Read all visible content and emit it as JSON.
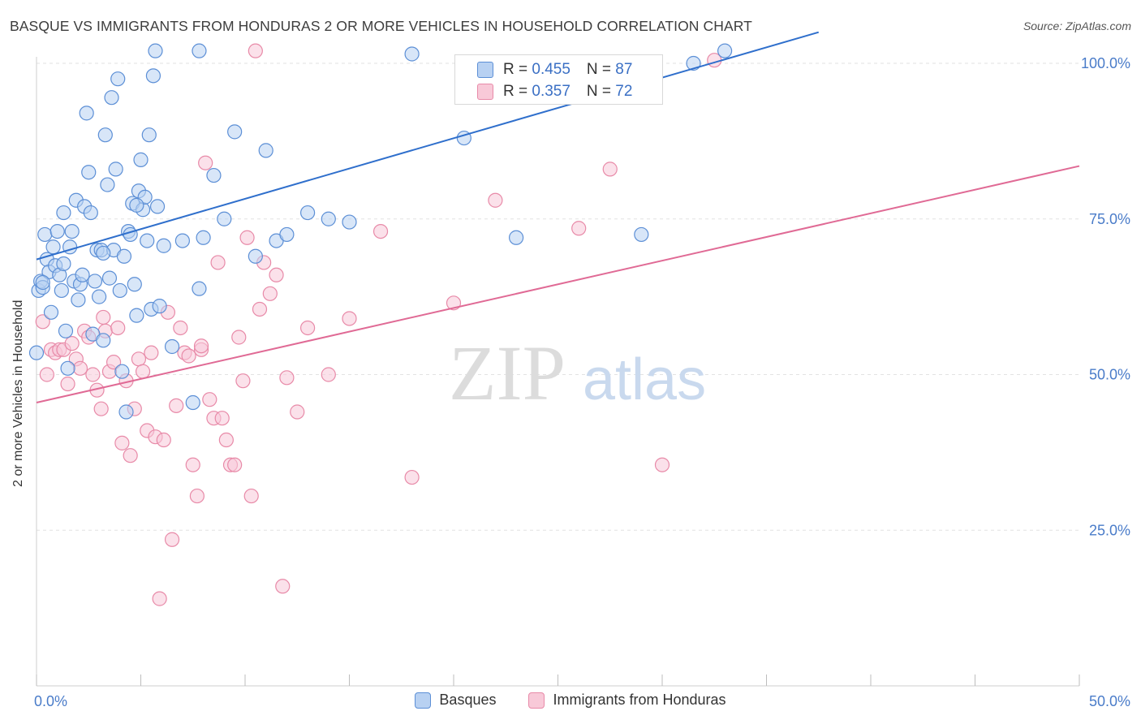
{
  "title": "BASQUE VS IMMIGRANTS FROM HONDURAS 2 OR MORE VEHICLES IN HOUSEHOLD CORRELATION CHART",
  "source": "Source: ZipAtlas.com",
  "watermark": {
    "zip": "ZIP",
    "atlas": "atlas"
  },
  "legend": {
    "rows": [
      {
        "r_label": "R = ",
        "r_value": "0.455",
        "n_label": "N = ",
        "n_value": "87"
      },
      {
        "r_label": "R = ",
        "r_value": "0.357",
        "n_label": "N = ",
        "n_value": "72"
      }
    ]
  },
  "colors": {
    "blue_fill": "#b8d1f2",
    "blue_stroke": "#5c8fd6",
    "blue_line": "#2f6fcc",
    "pink_fill": "#f8c9d8",
    "pink_stroke": "#e88aa8",
    "pink_line": "#e06a95",
    "axis_text": "#4a7cc9",
    "grid": "#e2e2e2"
  },
  "chart_data": {
    "type": "scatter",
    "title": "BASQUE VS IMMIGRANTS FROM HONDURAS 2 OR MORE VEHICLES IN HOUSEHOLD CORRELATION CHART",
    "xlabel": "",
    "ylabel": "2 or more Vehicles in Household",
    "xlim": [
      0,
      50
    ],
    "ylim": [
      0,
      105
    ],
    "x_tick_labels": [
      "0.0%",
      "50.0%"
    ],
    "y_ticks": [
      25,
      50,
      75,
      100
    ],
    "y_tick_labels": [
      "25.0%",
      "50.0%",
      "75.0%",
      "100.0%"
    ],
    "legend": [
      "Basques",
      "Immigrants from Honduras"
    ],
    "series": [
      {
        "name": "Basques",
        "trend": {
          "x": [
            0,
            37.5
          ],
          "y": [
            68.5,
            105
          ]
        },
        "points": [
          [
            0.1,
            63.5
          ],
          [
            0.2,
            65.0
          ],
          [
            0.3,
            64.0
          ],
          [
            0.4,
            72.5
          ],
          [
            0.5,
            68.5
          ],
          [
            0.6,
            66.5
          ],
          [
            0.7,
            60.0
          ],
          [
            0.8,
            70.5
          ],
          [
            0.9,
            67.5
          ],
          [
            1.0,
            73.0
          ],
          [
            1.1,
            66.0
          ],
          [
            1.2,
            63.5
          ],
          [
            1.3,
            76.0
          ],
          [
            1.4,
            57.0
          ],
          [
            1.5,
            51.0
          ],
          [
            1.6,
            70.5
          ],
          [
            1.7,
            73.0
          ],
          [
            1.8,
            65.0
          ],
          [
            1.9,
            78.0
          ],
          [
            2.0,
            62.0
          ],
          [
            2.1,
            64.5
          ],
          [
            2.2,
            66.0
          ],
          [
            2.3,
            77.0
          ],
          [
            2.4,
            92.0
          ],
          [
            2.5,
            82.5
          ],
          [
            2.6,
            76.0
          ],
          [
            2.7,
            56.5
          ],
          [
            2.8,
            65.0
          ],
          [
            2.9,
            70.0
          ],
          [
            3.0,
            62.5
          ],
          [
            3.1,
            70.0
          ],
          [
            3.2,
            55.5
          ],
          [
            3.3,
            88.5
          ],
          [
            3.4,
            80.5
          ],
          [
            3.5,
            65.5
          ],
          [
            3.6,
            94.5
          ],
          [
            3.7,
            70.0
          ],
          [
            3.8,
            83.0
          ],
          [
            3.9,
            97.5
          ],
          [
            4.0,
            63.5
          ],
          [
            4.1,
            50.5
          ],
          [
            4.2,
            69.0
          ],
          [
            4.3,
            44.0
          ],
          [
            4.4,
            73.0
          ],
          [
            4.5,
            72.5
          ],
          [
            4.6,
            77.5
          ],
          [
            4.7,
            64.5
          ],
          [
            4.8,
            59.5
          ],
          [
            4.9,
            79.5
          ],
          [
            5.0,
            84.5
          ],
          [
            5.1,
            76.5
          ],
          [
            5.2,
            78.5
          ],
          [
            5.3,
            71.5
          ],
          [
            5.4,
            88.5
          ],
          [
            5.5,
            60.5
          ],
          [
            5.6,
            98.0
          ],
          [
            5.7,
            102.0
          ],
          [
            5.8,
            77.0
          ],
          [
            5.9,
            61.0
          ],
          [
            6.5,
            54.5
          ],
          [
            7.0,
            71.5
          ],
          [
            7.5,
            45.5
          ],
          [
            7.8,
            102.0
          ],
          [
            8.0,
            72.0
          ],
          [
            8.5,
            82.0
          ],
          [
            9.0,
            75.0
          ],
          [
            9.5,
            89.0
          ],
          [
            10.5,
            69.0
          ],
          [
            11.0,
            86.0
          ],
          [
            11.5,
            71.5
          ],
          [
            12.0,
            72.5
          ],
          [
            13.0,
            76.0
          ],
          [
            14.0,
            75.0
          ],
          [
            15.0,
            74.5
          ],
          [
            18.0,
            101.5
          ],
          [
            20.5,
            88.0
          ],
          [
            23.0,
            72.0
          ],
          [
            29.0,
            72.5
          ],
          [
            31.5,
            100.0
          ],
          [
            33.0,
            102.0
          ],
          [
            0.0,
            53.5
          ],
          [
            0.3,
            64.8
          ],
          [
            1.3,
            67.8
          ],
          [
            3.2,
            69.5
          ],
          [
            4.8,
            77.2
          ],
          [
            6.1,
            70.7
          ],
          [
            7.8,
            63.8
          ]
        ]
      },
      {
        "name": "Immigrants from Honduras",
        "trend": {
          "x": [
            0,
            50
          ],
          "y": [
            45.5,
            83.5
          ]
        },
        "points": [
          [
            0.3,
            58.5
          ],
          [
            0.5,
            50.0
          ],
          [
            0.7,
            54.0
          ],
          [
            0.9,
            53.5
          ],
          [
            1.1,
            54.0
          ],
          [
            1.3,
            54.0
          ],
          [
            1.5,
            48.5
          ],
          [
            1.7,
            55.0
          ],
          [
            1.9,
            52.5
          ],
          [
            2.1,
            51.0
          ],
          [
            2.3,
            57.0
          ],
          [
            2.5,
            56.0
          ],
          [
            2.7,
            50.0
          ],
          [
            2.9,
            47.5
          ],
          [
            3.1,
            44.5
          ],
          [
            3.3,
            57.0
          ],
          [
            3.5,
            50.5
          ],
          [
            3.7,
            52.0
          ],
          [
            3.9,
            57.5
          ],
          [
            4.1,
            39.0
          ],
          [
            4.3,
            49.0
          ],
          [
            4.5,
            37.0
          ],
          [
            4.7,
            44.5
          ],
          [
            4.9,
            52.5
          ],
          [
            5.1,
            50.5
          ],
          [
            5.3,
            41.0
          ],
          [
            5.5,
            53.5
          ],
          [
            5.7,
            40.0
          ],
          [
            5.9,
            14.0
          ],
          [
            6.1,
            39.5
          ],
          [
            6.3,
            60.0
          ],
          [
            6.5,
            23.5
          ],
          [
            6.7,
            45.0
          ],
          [
            6.9,
            57.5
          ],
          [
            7.1,
            53.5
          ],
          [
            7.3,
            53.0
          ],
          [
            7.5,
            35.5
          ],
          [
            7.7,
            30.5
          ],
          [
            7.9,
            54.0
          ],
          [
            8.1,
            84.0
          ],
          [
            8.3,
            46.0
          ],
          [
            8.5,
            43.0
          ],
          [
            8.7,
            68.0
          ],
          [
            8.9,
            43.0
          ],
          [
            9.1,
            39.5
          ],
          [
            9.3,
            35.5
          ],
          [
            9.5,
            35.5
          ],
          [
            9.7,
            56.0
          ],
          [
            9.9,
            49.0
          ],
          [
            10.1,
            72.0
          ],
          [
            10.3,
            30.5
          ],
          [
            10.5,
            102.0
          ],
          [
            10.7,
            60.5
          ],
          [
            10.9,
            68.0
          ],
          [
            11.2,
            63.0
          ],
          [
            11.5,
            66.0
          ],
          [
            11.8,
            16.0
          ],
          [
            12.0,
            49.5
          ],
          [
            12.5,
            44.0
          ],
          [
            13.0,
            57.5
          ],
          [
            14.0,
            50.0
          ],
          [
            15.0,
            59.0
          ],
          [
            16.5,
            73.0
          ],
          [
            18.0,
            33.5
          ],
          [
            20.0,
            61.5
          ],
          [
            22.0,
            78.0
          ],
          [
            26.0,
            73.5
          ],
          [
            27.5,
            83.0
          ],
          [
            30.0,
            35.5
          ],
          [
            32.5,
            100.5
          ],
          [
            3.2,
            59.2
          ],
          [
            7.9,
            54.6
          ]
        ]
      }
    ]
  }
}
